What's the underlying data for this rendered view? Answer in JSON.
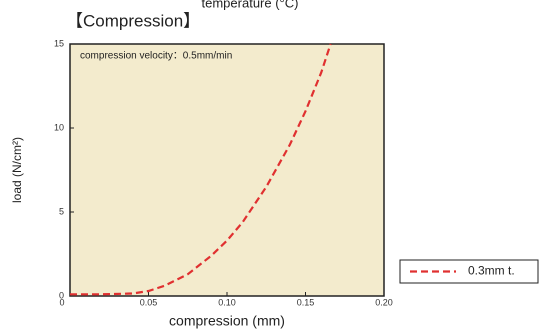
{
  "chart_data": {
    "type": "line",
    "header_text": "temperature (°C)",
    "title": "【Compression】",
    "annotation": "compression velocity：0.5mm/min",
    "xlabel": "compression (mm)",
    "ylabel": "load (N/cm²)",
    "x": [
      0,
      0.02,
      0.04,
      0.05,
      0.06,
      0.075,
      0.09,
      0.1,
      0.11,
      0.125,
      0.14,
      0.15,
      0.16,
      0.166
    ],
    "series": [
      {
        "name": "0.3mm t.",
        "color": "#e03030",
        "values": [
          0.1,
          0.1,
          0.15,
          0.3,
          0.6,
          1.3,
          2.4,
          3.3,
          4.4,
          6.5,
          9.0,
          11.0,
          13.3,
          15.0
        ]
      }
    ],
    "xlim": [
      0,
      0.2
    ],
    "ylim": [
      0,
      15
    ],
    "xticks": [
      0,
      0.05,
      {
        "value": 0.1,
        "label": "0.10"
      },
      0.15,
      {
        "value": 0.2,
        "label": "0.20"
      }
    ],
    "yticks": [
      0,
      5,
      10,
      15
    ],
    "background": "#f3ebcd",
    "legend_position": "outside-bottom-right"
  }
}
